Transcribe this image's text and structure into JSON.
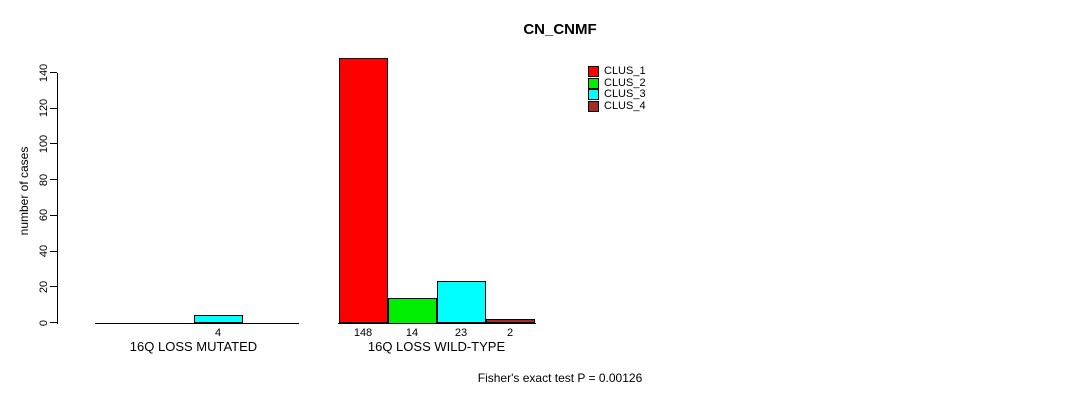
{
  "chart_data": {
    "type": "bar",
    "title": "CN_CNMF",
    "ylabel": "number of cases",
    "xlabel": "",
    "ylim": [
      0,
      140
    ],
    "yticks": [
      0,
      20,
      40,
      60,
      80,
      100,
      120,
      140
    ],
    "grid": false,
    "legend_position": "top-right",
    "categories": [
      "16Q LOSS MUTATED",
      "16Q LOSS WILD-TYPE"
    ],
    "series": [
      {
        "name": "CLUS_1",
        "color": "#FF0000",
        "values": [
          0,
          148
        ]
      },
      {
        "name": "CLUS_2",
        "color": "#00EE00",
        "values": [
          0,
          14
        ]
      },
      {
        "name": "CLUS_3",
        "color": "#00FFFF",
        "values": [
          4,
          23
        ]
      },
      {
        "name": "CLUS_4",
        "color": "#A52A2A",
        "values": [
          0,
          2
        ]
      }
    ],
    "bar_value_labels": [
      [
        "",
        "",
        "4",
        ""
      ],
      [
        "148",
        "14",
        "23",
        "2"
      ]
    ],
    "annotation": "Fisher's exact test P = 0.00126"
  }
}
